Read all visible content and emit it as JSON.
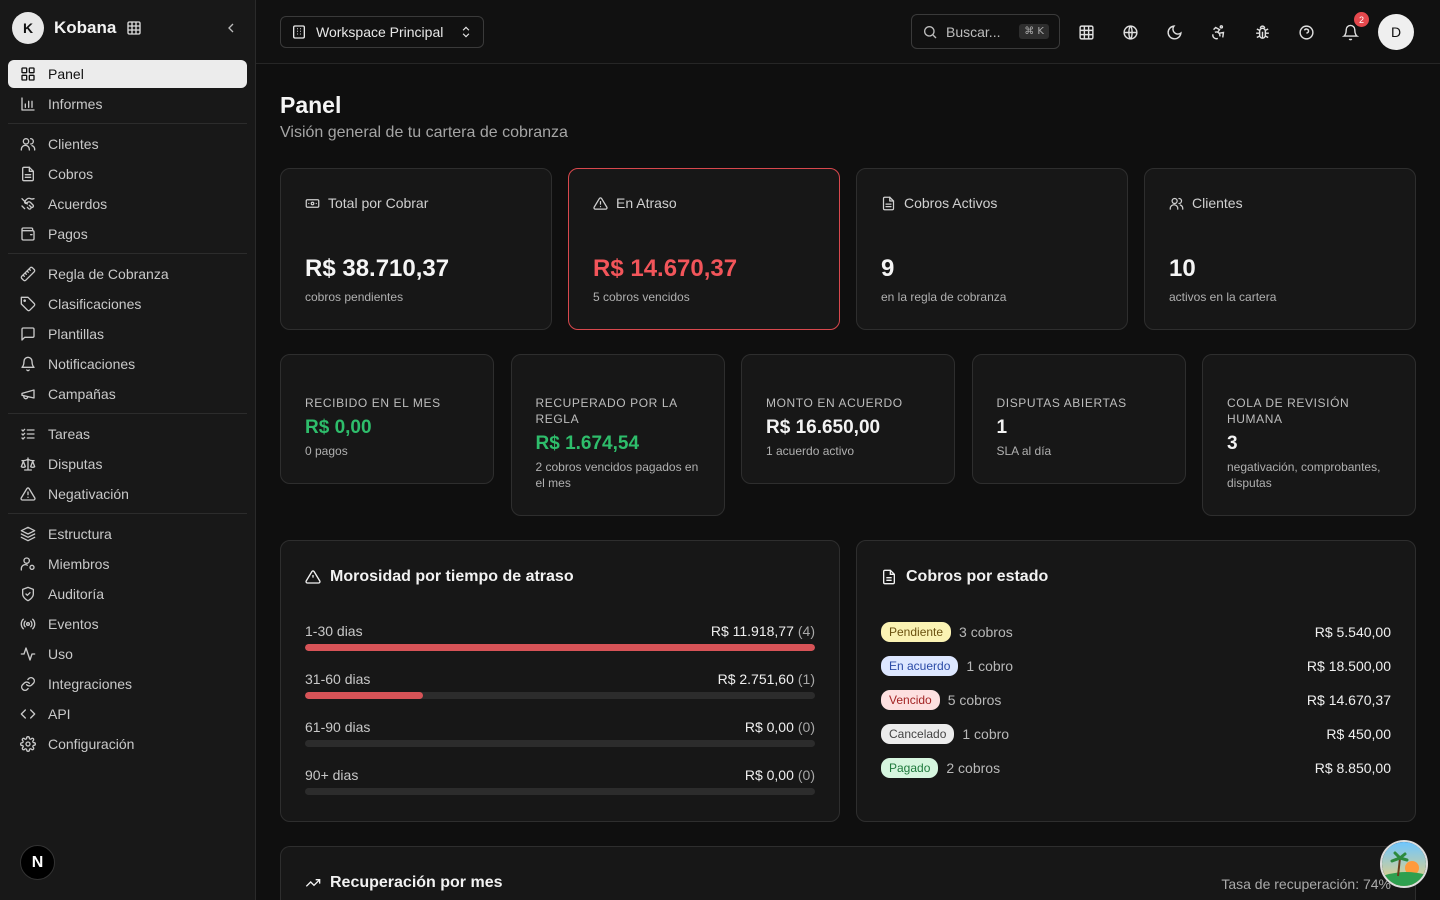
{
  "brand": {
    "initial": "K",
    "name": "Kobana"
  },
  "sidebar": {
    "groups": [
      [
        {
          "label": "Panel",
          "icon": "layout-grid-icon",
          "active": true
        },
        {
          "label": "Informes",
          "icon": "bar-chart-icon"
        }
      ],
      [
        {
          "label": "Clientes",
          "icon": "users-icon"
        },
        {
          "label": "Cobros",
          "icon": "file-text-icon"
        },
        {
          "label": "Acuerdos",
          "icon": "handshake-icon"
        },
        {
          "label": "Pagos",
          "icon": "wallet-icon"
        }
      ],
      [
        {
          "label": "Regla de Cobranza",
          "icon": "ruler-icon"
        },
        {
          "label": "Clasificaciones",
          "icon": "tag-icon"
        },
        {
          "label": "Plantillas",
          "icon": "message-square-icon"
        },
        {
          "label": "Notificaciones",
          "icon": "bell-icon"
        },
        {
          "label": "Campañas",
          "icon": "megaphone-icon"
        }
      ],
      [
        {
          "label": "Tareas",
          "icon": "list-checks-icon"
        },
        {
          "label": "Disputas",
          "icon": "scale-icon"
        },
        {
          "label": "Negativación",
          "icon": "alert-triangle-icon"
        }
      ],
      [
        {
          "label": "Estructura",
          "icon": "layers-icon"
        },
        {
          "label": "Miembros",
          "icon": "user-cog-icon"
        },
        {
          "label": "Auditoría",
          "icon": "shield-check-icon"
        },
        {
          "label": "Eventos",
          "icon": "radio-icon"
        },
        {
          "label": "Uso",
          "icon": "activity-icon"
        },
        {
          "label": "Integraciones",
          "icon": "link-icon"
        },
        {
          "label": "API",
          "icon": "code-icon"
        },
        {
          "label": "Configuración",
          "icon": "settings-icon"
        }
      ]
    ],
    "footer_badge": "N"
  },
  "header": {
    "workspace": "Workspace Principal",
    "search_placeholder": "Buscar...",
    "search_shortcut": "⌘ K",
    "notifications_count": "2",
    "user_initial": "D"
  },
  "page": {
    "title": "Panel",
    "subtitle": "Visión general de tu cartera de cobranza"
  },
  "kpis": [
    {
      "label": "Total por Cobrar",
      "icon": "banknote-icon",
      "value": "R$ 38.710,37",
      "note": "cobros pendientes"
    },
    {
      "label": "En Atraso",
      "icon": "alert-triangle-icon",
      "value": "R$ 14.670,37",
      "note": "5 cobros vencidos",
      "danger": true
    },
    {
      "label": "Cobros Activos",
      "icon": "file-text-icon",
      "value": "9",
      "note": "en la regla de cobranza"
    },
    {
      "label": "Clientes",
      "icon": "users-icon",
      "value": "10",
      "note": "activos en la cartera"
    }
  ],
  "minis": [
    {
      "label": "Recibido en el mes",
      "value": "R$ 0,00",
      "note": "0 pagos",
      "green": true
    },
    {
      "label": "Recuperado por la regla",
      "value": "R$ 1.674,54",
      "note": "2 cobros vencidos pagados en el mes",
      "green": true
    },
    {
      "label": "Monto en acuerdo",
      "value": "R$ 16.650,00",
      "note": "1 acuerdo activo"
    },
    {
      "label": "Disputas abiertas",
      "value": "1",
      "note": "SLA al día"
    },
    {
      "label": "Cola de revisión humana",
      "value": "3",
      "note": "negativación, comprobantes, disputas"
    }
  ],
  "aging": {
    "title": "Morosidad por tiempo de atraso",
    "rows": [
      {
        "label": "1-30 dias",
        "amount": "R$ 11.918,77",
        "count": "(4)",
        "fraction": 1.0
      },
      {
        "label": "31-60 dias",
        "amount": "R$ 2.751,60",
        "count": "(1)",
        "fraction": 0.231
      },
      {
        "label": "61-90 dias",
        "amount": "R$ 0,00",
        "count": "(0)",
        "fraction": 0
      },
      {
        "label": "90+ dias",
        "amount": "R$ 0,00",
        "count": "(0)",
        "fraction": 0
      }
    ]
  },
  "status": {
    "title": "Cobros por estado",
    "rows": [
      {
        "label": "Pendiente",
        "count": "3 cobros",
        "amount": "R$ 5.540,00",
        "kind": "pend"
      },
      {
        "label": "En acuerdo",
        "count": "1 cobro",
        "amount": "R$ 18.500,00",
        "kind": "acuerdo"
      },
      {
        "label": "Vencido",
        "count": "5 cobros",
        "amount": "R$ 14.670,37",
        "kind": "venc"
      },
      {
        "label": "Cancelado",
        "count": "1 cobro",
        "amount": "R$ 450,00",
        "kind": "canc"
      },
      {
        "label": "Pagado",
        "count": "2 cobros",
        "amount": "R$ 8.850,00",
        "kind": "pag"
      }
    ]
  },
  "recovery": {
    "title": "Recuperación por mes",
    "rate": "Tasa de recuperación: 74%"
  }
}
